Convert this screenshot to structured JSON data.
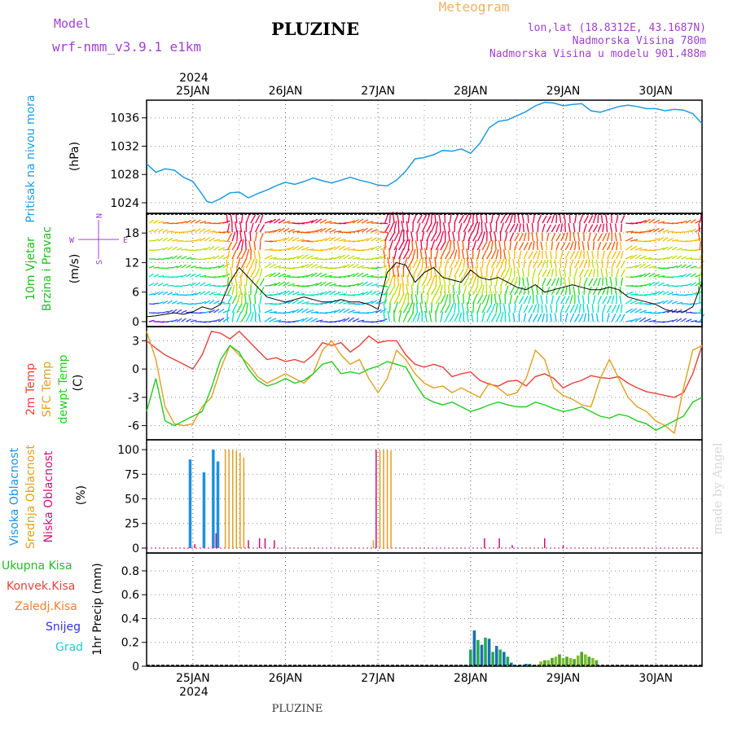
{
  "header": {
    "model_label": "Model",
    "model_name": "wrf-nmm_v3.9.1  e1km",
    "station_title": "PLUZINE",
    "chart_kind": "Meteogram",
    "lonlat": "lon,lat (18.8312E, 43.1687N)",
    "altitude": "Nadmorska Visina 780m",
    "model_altitude": "Nadmorska Visina u modelu 901.488m",
    "footer_title": "PLUZINE",
    "credit": "made by Angel"
  },
  "colors": {
    "pressure": "#1e9be0",
    "temp2m": "#e8403a",
    "sfc": "#e0a020",
    "dew": "#22cc22",
    "high_cloud": "#1e90dd",
    "mid_cloud": "#e0a020",
    "low_cloud": "#cc1177",
    "purple": "#a040d0",
    "orange": "#f0b060"
  },
  "chart_data": [
    {
      "panel": "pressure",
      "type": "line",
      "ylabel_left": "Pritisak na nivou mora",
      "unit": "(hPa)",
      "yticks": [
        1024,
        1028,
        1032,
        1036
      ],
      "ylim": [
        1022.5,
        1038.5
      ],
      "x": [
        24.5,
        24.6,
        24.7,
        24.8,
        24.9,
        25.0,
        25.1,
        25.15,
        25.2,
        25.3,
        25.4,
        25.5,
        25.6,
        25.7,
        25.8,
        25.9,
        26.0,
        26.1,
        26.2,
        26.3,
        26.4,
        26.5,
        26.6,
        26.7,
        26.8,
        26.9,
        27.0,
        27.1,
        27.2,
        27.3,
        27.4,
        27.5,
        27.6,
        27.7,
        27.8,
        27.9,
        28.0,
        28.1,
        28.2,
        28.3,
        28.4,
        28.5,
        28.6,
        28.7,
        28.8,
        28.9,
        29.0,
        29.1,
        29.2,
        29.3,
        29.4,
        29.5,
        29.6,
        29.7,
        29.8,
        29.9,
        30.0,
        30.1,
        30.2,
        30.3,
        30.4,
        30.5
      ],
      "values": [
        1029.5,
        1028.3,
        1028.8,
        1028.6,
        1027.6,
        1027.0,
        1025.2,
        1024.2,
        1024.0,
        1024.6,
        1025.4,
        1025.5,
        1024.7,
        1025.3,
        1025.8,
        1026.4,
        1026.9,
        1026.6,
        1027.0,
        1027.5,
        1027.1,
        1026.8,
        1027.2,
        1027.6,
        1027.2,
        1026.9,
        1026.5,
        1026.4,
        1027.2,
        1028.5,
        1030.2,
        1030.4,
        1030.8,
        1031.4,
        1031.3,
        1031.6,
        1031.0,
        1032.4,
        1034.6,
        1035.5,
        1035.7,
        1036.3,
        1036.9,
        1037.7,
        1038.2,
        1038.1,
        1037.7,
        1037.9,
        1038.0,
        1037.0,
        1036.8,
        1037.2,
        1037.6,
        1037.8,
        1037.6,
        1037.3,
        1037.3,
        1037.0,
        1037.2,
        1037.1,
        1036.6,
        1035.2
      ]
    },
    {
      "panel": "wind",
      "type": "line",
      "ylabel_left": "10m Vjetar",
      "ylabel_left2": "Brzina i Pravac",
      "unit": "(m/s)",
      "compass_n": "N",
      "compass_e": "E",
      "compass_w": "W",
      "compass_s": "S",
      "yticks": [
        0,
        6,
        12,
        18
      ],
      "ylim": [
        -1.0,
        22.0
      ],
      "x": [
        24.5,
        24.6,
        24.7,
        24.8,
        24.9,
        25.0,
        25.1,
        25.2,
        25.3,
        25.4,
        25.5,
        25.6,
        25.7,
        25.8,
        25.9,
        26.0,
        26.1,
        26.2,
        26.3,
        26.4,
        26.5,
        26.6,
        26.7,
        26.8,
        26.9,
        27.0,
        27.1,
        27.2,
        27.3,
        27.4,
        27.5,
        27.6,
        27.7,
        27.8,
        27.9,
        28.0,
        28.1,
        28.2,
        28.3,
        28.4,
        28.5,
        28.6,
        28.7,
        28.8,
        28.9,
        29.0,
        29.1,
        29.2,
        29.3,
        29.4,
        29.5,
        29.6,
        29.7,
        29.8,
        29.9,
        30.0,
        30.1,
        30.2,
        30.3,
        30.4,
        30.5
      ],
      "values": [
        1.0,
        1.2,
        1.5,
        1.8,
        1.5,
        2.0,
        3.0,
        2.5,
        3.5,
        8.0,
        11.0,
        9.0,
        7.0,
        5.0,
        4.5,
        4.0,
        4.5,
        5.0,
        4.5,
        4.0,
        4.0,
        4.5,
        4.0,
        4.0,
        3.5,
        2.5,
        10.0,
        12.0,
        11.5,
        8.0,
        10.0,
        11.0,
        9.0,
        8.5,
        8.0,
        10.5,
        9.0,
        8.5,
        9.0,
        8.0,
        7.0,
        6.5,
        7.5,
        6.0,
        6.5,
        7.0,
        7.5,
        7.0,
        6.5,
        6.5,
        7.0,
        6.5,
        5.0,
        4.5,
        4.0,
        3.5,
        2.5,
        2.0,
        2.0,
        3.0,
        8.0
      ]
    },
    {
      "panel": "temperature",
      "type": "line",
      "ylabel_lines": [
        "2m Temp",
        "SFC Temp",
        "dewpt Temp"
      ],
      "unit": "(C)",
      "yticks": [
        -6,
        -3,
        0,
        3
      ],
      "ylim": [
        -7.5,
        4.5
      ],
      "x": [
        24.5,
        24.6,
        24.7,
        24.8,
        24.9,
        25.0,
        25.1,
        25.2,
        25.3,
        25.4,
        25.5,
        25.6,
        25.7,
        25.8,
        25.9,
        26.0,
        26.1,
        26.2,
        26.3,
        26.4,
        26.5,
        26.6,
        26.7,
        26.8,
        26.9,
        27.0,
        27.1,
        27.2,
        27.3,
        27.4,
        27.5,
        27.6,
        27.7,
        27.8,
        27.9,
        28.0,
        28.1,
        28.2,
        28.3,
        28.4,
        28.5,
        28.6,
        28.7,
        28.8,
        28.9,
        29.0,
        29.1,
        29.2,
        29.3,
        29.4,
        29.5,
        29.6,
        29.7,
        29.8,
        29.9,
        30.0,
        30.1,
        30.2,
        30.3,
        30.4,
        30.5
      ],
      "series": [
        {
          "name": "2m Temp",
          "color_key": "temp2m",
          "values": [
            3.0,
            2.2,
            1.5,
            1.0,
            0.5,
            0.0,
            1.5,
            4.0,
            3.8,
            3.2,
            4.0,
            3.0,
            2.0,
            1.0,
            1.2,
            0.8,
            1.0,
            0.7,
            1.5,
            2.8,
            2.5,
            2.8,
            1.8,
            2.5,
            3.5,
            2.8,
            3.0,
            3.0,
            1.5,
            0.5,
            0.2,
            0.5,
            0.2,
            -0.8,
            -0.5,
            -0.3,
            -1.2,
            -1.6,
            -1.8,
            -1.3,
            -1.2,
            -1.8,
            -0.8,
            -0.5,
            -1.0,
            -2.0,
            -1.5,
            -1.2,
            -0.7,
            -0.9,
            -1.0,
            -0.8,
            -1.5,
            -2.0,
            -2.4,
            -2.6,
            -2.8,
            -3.0,
            -2.5,
            -0.5,
            2.5
          ]
        },
        {
          "name": "SFC Temp",
          "color_key": "sfc",
          "values": [
            4.0,
            1.0,
            -4.0,
            -5.8,
            -6.0,
            -5.8,
            -4.0,
            -3.0,
            0.0,
            2.5,
            1.5,
            0.5,
            -0.8,
            -1.5,
            -1.0,
            -0.5,
            -1.0,
            -1.5,
            -0.5,
            2.0,
            3.0,
            1.5,
            0.5,
            1.0,
            -1.0,
            -2.5,
            -1.0,
            2.0,
            1.0,
            -0.5,
            -1.5,
            -2.0,
            -1.8,
            -2.5,
            -2.0,
            -2.5,
            -3.0,
            -1.5,
            -2.0,
            -2.8,
            -2.5,
            -1.0,
            2.0,
            1.0,
            -2.0,
            -2.8,
            -3.2,
            -3.8,
            -4.0,
            -1.0,
            1.0,
            -1.0,
            -3.0,
            -4.0,
            -4.5,
            -5.5,
            -6.0,
            -6.8,
            -2.0,
            2.0,
            2.5
          ]
        },
        {
          "name": "dewpt Temp",
          "color_key": "dew",
          "values": [
            -4.5,
            -1.0,
            -5.5,
            -6.0,
            -5.5,
            -5.0,
            -4.5,
            -2.0,
            1.0,
            2.5,
            1.8,
            0.0,
            -1.2,
            -1.8,
            -1.5,
            -1.0,
            -1.5,
            -1.2,
            -0.5,
            0.5,
            0.8,
            -0.5,
            -0.3,
            -0.5,
            0.0,
            0.3,
            0.8,
            0.5,
            0.2,
            -1.5,
            -3.0,
            -3.5,
            -3.8,
            -3.5,
            -4.0,
            -4.5,
            -4.2,
            -3.8,
            -3.5,
            -3.8,
            -4.0,
            -4.0,
            -3.5,
            -3.8,
            -4.2,
            -4.5,
            -4.3,
            -4.0,
            -4.5,
            -5.0,
            -5.2,
            -4.8,
            -5.0,
            -5.5,
            -5.8,
            -6.5,
            -6.0,
            -5.5,
            -5.0,
            -3.5,
            -3.0
          ]
        }
      ]
    },
    {
      "panel": "clouds",
      "type": "bar",
      "ylabel_lines": [
        "Visoka Oblacnost",
        "Srednja Oblacnost",
        "Niska Oblacnost"
      ],
      "unit": "(%)",
      "yticks": [
        0,
        25,
        50,
        75,
        100
      ],
      "ylim": [
        -5,
        110
      ],
      "series": [
        {
          "name": "Visoka Oblacnost",
          "color_key": "high_cloud",
          "x": [
            24.97,
            25.12,
            25.22,
            25.27
          ],
          "values": [
            90,
            77,
            100,
            88
          ]
        },
        {
          "name": "Srednja Oblacnost",
          "color_key": "mid_cloud",
          "x": [
            25.35,
            25.39,
            25.43,
            25.47,
            25.51,
            25.55,
            26.95,
            27.02,
            27.06,
            27.1,
            27.14
          ],
          "values": [
            100,
            100,
            100,
            99,
            97,
            92,
            8,
            100,
            100,
            100,
            99
          ]
        },
        {
          "name": "Niska Oblacnost",
          "color_key": "low_cloud",
          "x": [
            25.02,
            25.25,
            25.6,
            25.72,
            25.78,
            25.88,
            26.98,
            28.15,
            28.31,
            28.45,
            28.8,
            29.0
          ],
          "values": [
            4,
            15,
            8,
            10,
            10,
            8,
            100,
            10,
            10,
            3,
            10,
            3
          ]
        }
      ]
    },
    {
      "panel": "precip",
      "type": "bar",
      "ylabel_lines": [
        "Ukupna Kisa",
        "Konvek.Kisa",
        "Zaledj.Kisa",
        "Snijeg",
        "Grad"
      ],
      "unit": "1hr Precip (mm)",
      "yticks": [
        0,
        0.2,
        0.4,
        0.6,
        0.8
      ],
      "ylim": [
        0,
        0.95
      ],
      "x": [
        28.0,
        28.04,
        28.08,
        28.12,
        28.16,
        28.2,
        28.24,
        28.28,
        28.32,
        28.36,
        28.4,
        28.44,
        28.48,
        28.52,
        28.56,
        28.6,
        28.64,
        28.68,
        28.72,
        28.76,
        28.8,
        28.84,
        28.88,
        28.92,
        28.96,
        29.0,
        29.04,
        29.08,
        29.12,
        29.16,
        29.2,
        29.24,
        29.28,
        29.32,
        29.36
      ],
      "values": [
        0.14,
        0.3,
        0.22,
        0.18,
        0.24,
        0.23,
        0.12,
        0.17,
        0.14,
        0.12,
        0.08,
        0.03,
        0.01,
        0.0,
        0.01,
        0.02,
        0.02,
        0.0,
        0.01,
        0.04,
        0.05,
        0.05,
        0.07,
        0.08,
        0.1,
        0.07,
        0.08,
        0.07,
        0.06,
        0.09,
        0.12,
        0.1,
        0.08,
        0.07,
        0.05
      ]
    }
  ],
  "x_axis": {
    "year": "2024",
    "day_labels": [
      "25JAN",
      "26JAN",
      "27JAN",
      "28JAN",
      "29JAN",
      "30JAN"
    ],
    "day_values": [
      25,
      26,
      27,
      28,
      29,
      30
    ],
    "xlim": [
      24.5,
      30.5
    ]
  }
}
